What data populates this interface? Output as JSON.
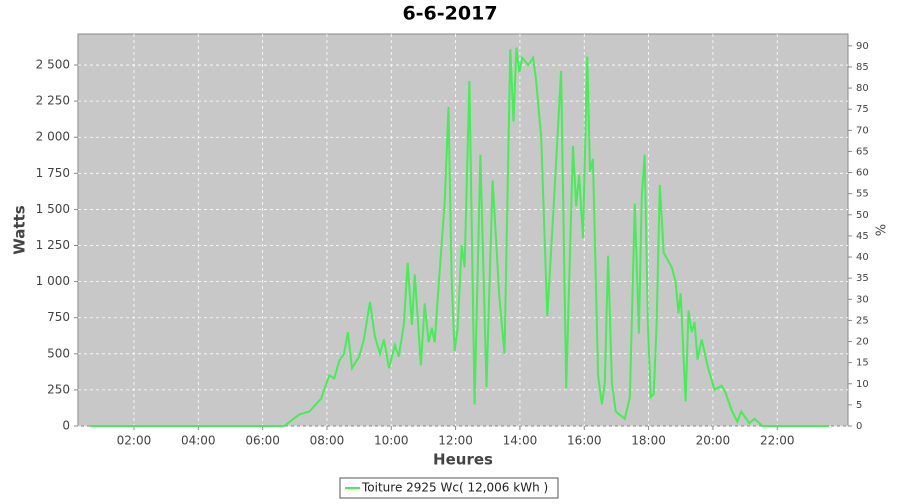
{
  "chart_data": {
    "type": "line",
    "title": "6-6-2017",
    "x_label": "Heures",
    "y_label": "Watts",
    "y2_label": "%",
    "xlim": [
      0.26,
      24.2
    ],
    "xticks": [
      {
        "value": 2,
        "label": "02:00"
      },
      {
        "value": 4,
        "label": "04:00"
      },
      {
        "value": 6,
        "label": "06:00"
      },
      {
        "value": 8,
        "label": "08:00"
      },
      {
        "value": 10,
        "label": "10:00"
      },
      {
        "value": 12,
        "label": "12:00"
      },
      {
        "value": 14,
        "label": "14:00"
      },
      {
        "value": 16,
        "label": "16:00"
      },
      {
        "value": 18,
        "label": "18:00"
      },
      {
        "value": 20,
        "label": "20:00"
      },
      {
        "value": 22,
        "label": "22:00"
      }
    ],
    "ylim": [
      0,
      2715
    ],
    "yticks": [
      0,
      250,
      500,
      750,
      {
        "value": 1000,
        "label": "1 000"
      },
      {
        "value": 1250,
        "label": "1 250"
      },
      {
        "value": 1500,
        "label": "1 500"
      },
      {
        "value": 1750,
        "label": "1 750"
      },
      {
        "value": 2000,
        "label": "2 000"
      },
      {
        "value": 2250,
        "label": "2 250"
      },
      {
        "value": 2500,
        "label": "2 500"
      }
    ],
    "y2lim": [
      0,
      92.8
    ],
    "y2ticks": [
      0,
      5,
      10,
      15,
      20,
      25,
      30,
      35,
      40,
      45,
      50,
      55,
      60,
      65,
      70,
      75,
      80,
      85,
      90
    ],
    "grid": true,
    "legend": "bottom",
    "x": [
      0.64,
      6.67,
      7.14,
      7.45,
      7.82,
      8.07,
      8.23,
      8.38,
      8.53,
      8.65,
      8.78,
      9.0,
      9.15,
      9.34,
      9.49,
      9.65,
      9.77,
      9.93,
      10.11,
      10.23,
      10.39,
      10.51,
      10.64,
      10.73,
      10.92,
      11.04,
      11.16,
      11.26,
      11.35,
      11.48,
      11.66,
      11.78,
      11.88,
      11.97,
      12.06,
      12.19,
      12.28,
      12.43,
      12.59,
      12.77,
      12.96,
      13.15,
      13.36,
      13.52,
      13.7,
      13.8,
      13.89,
      13.98,
      14.07,
      14.26,
      14.41,
      14.5,
      14.66,
      14.85,
      15.07,
      15.28,
      15.44,
      15.65,
      15.75,
      15.84,
      15.96,
      16.09,
      16.18,
      16.27,
      16.43,
      16.55,
      16.64,
      16.74,
      16.86,
      16.98,
      17.26,
      17.42,
      17.57,
      17.7,
      17.79,
      17.88,
      17.98,
      18.07,
      18.16,
      18.25,
      18.35,
      18.47,
      18.72,
      18.84,
      18.93,
      19.0,
      19.15,
      19.24,
      19.34,
      19.43,
      19.52,
      19.65,
      19.83,
      20.05,
      20.27,
      20.39,
      20.6,
      20.76,
      20.88,
      21.13,
      21.29,
      21.54,
      23.61
    ],
    "series": [
      {
        "name": "Toiture 2925 Wc( 12,006 kWh )",
        "color": "#44ee55",
        "values": [
          0,
          0,
          80,
          100,
          190,
          350,
          330,
          450,
          500,
          650,
          400,
          480,
          600,
          860,
          620,
          500,
          600,
          400,
          560,
          480,
          700,
          1130,
          700,
          1050,
          420,
          850,
          580,
          680,
          580,
          1000,
          1550,
          2210,
          1000,
          520,
          670,
          1250,
          1100,
          2390,
          150,
          1880,
          270,
          1700,
          900,
          500,
          2610,
          2110,
          2620,
          2450,
          2550,
          2500,
          2550,
          2400,
          2000,
          760,
          1600,
          2460,
          260,
          1940,
          1520,
          1740,
          1300,
          2560,
          1760,
          1850,
          350,
          150,
          300,
          1180,
          300,
          100,
          50,
          200,
          1540,
          640,
          1600,
          1880,
          700,
          200,
          220,
          700,
          1670,
          1200,
          1100,
          1000,
          780,
          920,
          170,
          800,
          650,
          720,
          460,
          600,
          420,
          250,
          280,
          230,
          100,
          30,
          100,
          20,
          50,
          0,
          0
        ]
      }
    ]
  }
}
